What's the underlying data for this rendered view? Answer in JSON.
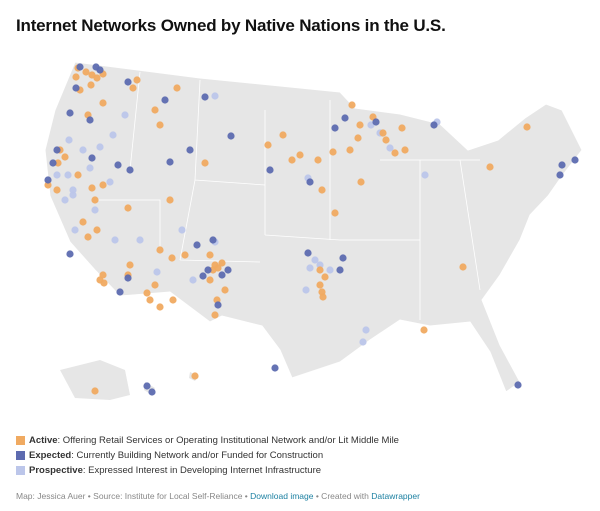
{
  "header": {
    "title": "Internet Networks Owned by Native Nations in the U.S."
  },
  "legend": [
    {
      "label": "Active",
      "description": ": Offering Retail Services or Operating Institutional Network and/or Lit Middle Mile",
      "color": "#f0aa61"
    },
    {
      "label": "Expected",
      "description": ": Currently Building Network and/or Funded for Construction",
      "color": "#5d6bb0"
    },
    {
      "label": "Prospective",
      "description": ": Expressed Interest in Developing Internet Infrastructure",
      "color": "#bcc6ea"
    }
  ],
  "footer": {
    "credit": "Map: Jessica Auer • Source: Institute for Local Self-Reliance • ",
    "download": "Download image",
    "created": " • Created with ",
    "tool": "Datawrapper"
  }
}
